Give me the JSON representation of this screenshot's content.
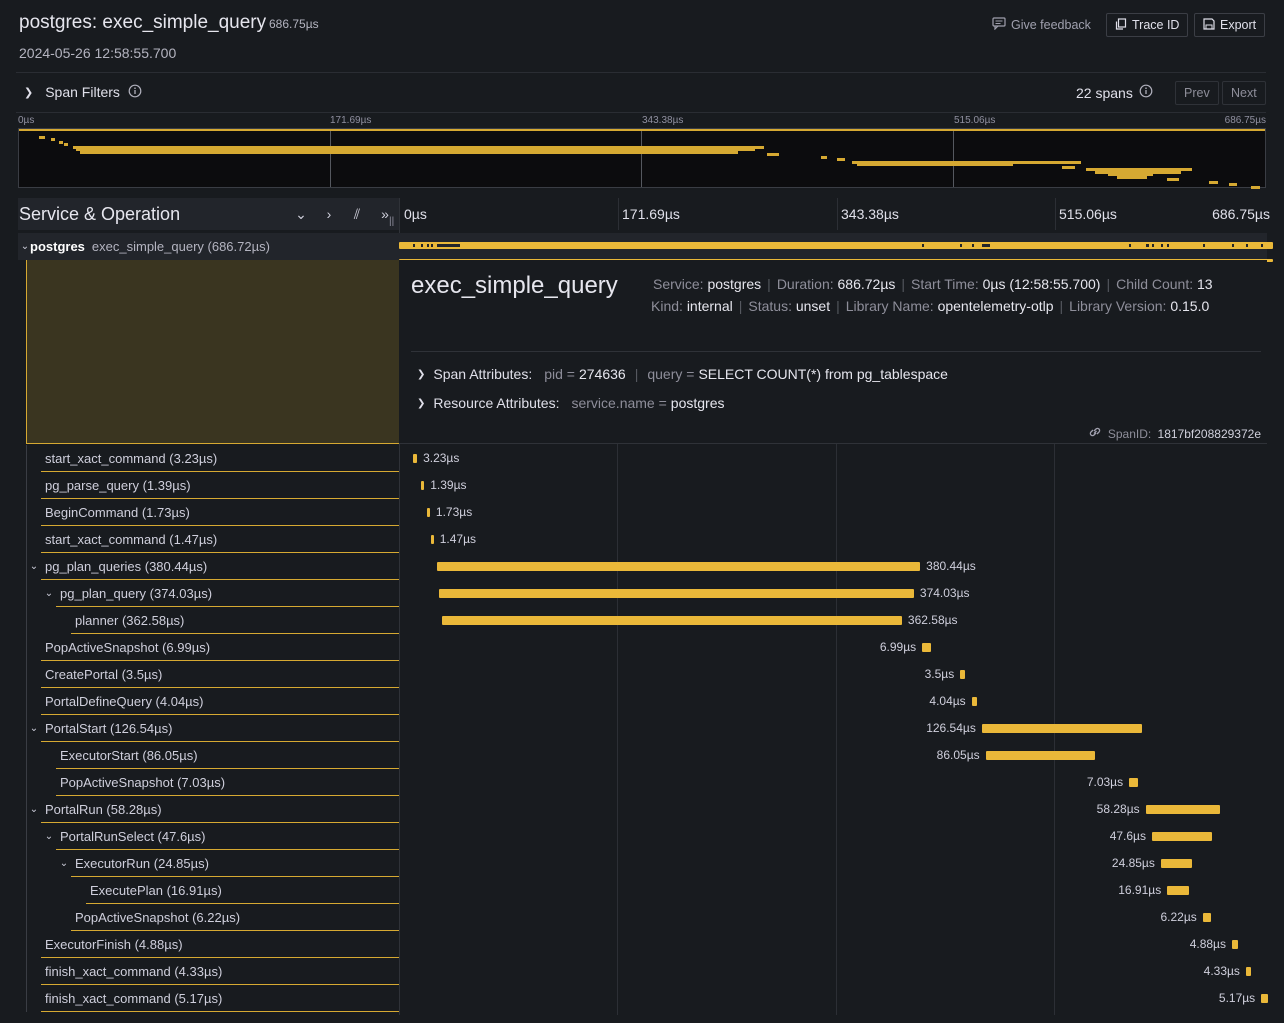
{
  "header": {
    "title": "postgres: exec_simple_query",
    "duration": "686.75µs",
    "timestamp": "2024-05-26 12:58:55.700",
    "feedback": "Give feedback",
    "trace_id": "Trace ID",
    "export": "Export"
  },
  "filters": {
    "label": "Span Filters",
    "span_count": "22 spans",
    "prev": "Prev",
    "next": "Next"
  },
  "minimap": {
    "ticks": [
      "0µs",
      "171.69µs",
      "343.38µs",
      "515.06µs",
      "686.75µs"
    ]
  },
  "timeline": {
    "column_title": "Service & Operation",
    "ticks": [
      "0µs",
      "171.69µs",
      "343.38µs",
      "515.06µs",
      "686.75µs"
    ],
    "total_us": 686.75
  },
  "root": {
    "service": "postgres",
    "operation": "exec_simple_query (686.72µs)"
  },
  "detail": {
    "title": "exec_simple_query",
    "service_key": "Service:",
    "service_val": "postgres",
    "duration_key": "Duration:",
    "duration_val": "686.72µs",
    "start_key": "Start Time:",
    "start_val": "0µs (12:58:55.700)",
    "child_key": "Child Count:",
    "child_val": "13",
    "kind_key": "Kind:",
    "kind_val": "internal",
    "status_key": "Status:",
    "status_val": "unset",
    "lib_key": "Library Name:",
    "lib_val": "opentelemetry-otlp",
    "libver_key": "Library Version:",
    "libver_val": "0.15.0",
    "span_attr_label": "Span Attributes:",
    "pid_key": "pid =",
    "pid_val": "274636",
    "query_key": "query =",
    "query_val": "SELECT COUNT(*) from pg_tablespace",
    "res_attr_label": "Resource Attributes:",
    "svcname_key": "service.name =",
    "svcname_val": "postgres",
    "spanid_key": "SpanID:",
    "spanid_val": "1817bf208829372e"
  },
  "spans": [
    {
      "name": "start_xact_command (3.23µs)",
      "depth": 0,
      "start": 11.0,
      "dur": 3.23,
      "label": "3.23µs",
      "chev": false
    },
    {
      "name": "pg_parse_query (1.39µs)",
      "depth": 0,
      "start": 17.5,
      "dur": 1.39,
      "label": "1.39µs",
      "chev": false
    },
    {
      "name": "BeginCommand (1.73µs)",
      "depth": 0,
      "start": 22.0,
      "dur": 1.73,
      "label": "1.73µs",
      "chev": false
    },
    {
      "name": "start_xact_command (1.47µs)",
      "depth": 0,
      "start": 25.0,
      "dur": 1.47,
      "label": "1.47µs",
      "chev": false
    },
    {
      "name": "pg_plan_queries (380.44µs)",
      "depth": 0,
      "start": 30.0,
      "dur": 380.44,
      "label": "380.44µs",
      "chev": true
    },
    {
      "name": "pg_plan_query (374.03µs)",
      "depth": 1,
      "start": 31.5,
      "dur": 374.03,
      "label": "374.03µs",
      "chev": true
    },
    {
      "name": "planner (362.58µs)",
      "depth": 2,
      "start": 33.5,
      "dur": 362.58,
      "label": "362.58µs",
      "chev": false
    },
    {
      "name": "PopActiveSnapshot (6.99µs)",
      "depth": 0,
      "start": 412.0,
      "dur": 6.99,
      "label": "6.99µs",
      "chev": false,
      "left": true
    },
    {
      "name": "CreatePortal (3.5µs)",
      "depth": 0,
      "start": 442.0,
      "dur": 3.5,
      "label": "3.5µs",
      "chev": false,
      "left": true
    },
    {
      "name": "PortalDefineQuery (4.04µs)",
      "depth": 0,
      "start": 451.0,
      "dur": 4.04,
      "label": "4.04µs",
      "chev": false,
      "left": true
    },
    {
      "name": "PortalStart (126.54µs)",
      "depth": 0,
      "start": 459.0,
      "dur": 126.54,
      "label": "126.54µs",
      "chev": true,
      "left": true
    },
    {
      "name": "ExecutorStart (86.05µs)",
      "depth": 1,
      "start": 462.0,
      "dur": 86.05,
      "label": "86.05µs",
      "chev": false,
      "left": true
    },
    {
      "name": "PopActiveSnapshot (7.03µs)",
      "depth": 1,
      "start": 575.0,
      "dur": 7.03,
      "label": "7.03µs",
      "chev": false,
      "left": true
    },
    {
      "name": "PortalRun (58.28µs)",
      "depth": 0,
      "start": 588.0,
      "dur": 58.28,
      "label": "58.28µs",
      "chev": true,
      "left": true
    },
    {
      "name": "PortalRunSelect (47.6µs)",
      "depth": 1,
      "start": 593.0,
      "dur": 47.6,
      "label": "47.6µs",
      "chev": true,
      "left": true
    },
    {
      "name": "ExecutorRun (24.85µs)",
      "depth": 2,
      "start": 600.0,
      "dur": 24.85,
      "label": "24.85µs",
      "chev": true,
      "left": true
    },
    {
      "name": "ExecutePlan (16.91µs)",
      "depth": 3,
      "start": 605.0,
      "dur": 16.91,
      "label": "16.91µs",
      "chev": false,
      "left": true
    },
    {
      "name": "PopActiveSnapshot (6.22µs)",
      "depth": 2,
      "start": 633.0,
      "dur": 6.22,
      "label": "6.22µs",
      "chev": false,
      "left": true
    },
    {
      "name": "ExecutorFinish (4.88µs)",
      "depth": 0,
      "start": 656.0,
      "dur": 4.88,
      "label": "4.88µs",
      "chev": false,
      "left": true
    },
    {
      "name": "finish_xact_command (4.33µs)",
      "depth": 0,
      "start": 667.0,
      "dur": 4.33,
      "label": "4.33µs",
      "chev": false,
      "left": true
    },
    {
      "name": "finish_xact_command (5.17µs)",
      "depth": 0,
      "start": 679.0,
      "dur": 5.17,
      "label": "5.17µs",
      "chev": false,
      "left": true
    }
  ]
}
